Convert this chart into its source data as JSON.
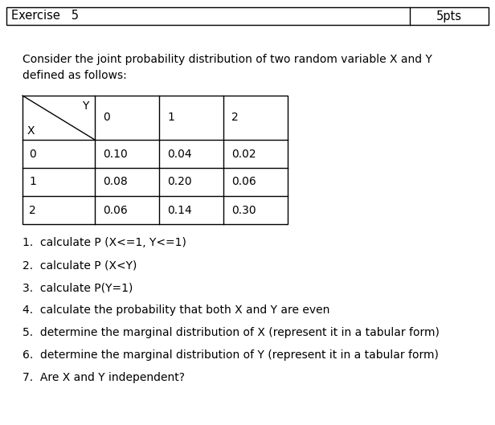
{
  "header_left": "Exercise   5",
  "header_right": "5pts",
  "intro_line1": "Consider the joint probability distribution of two random variable X and Y",
  "intro_line2": "defined as follows:",
  "col_headers": [
    "0",
    "1",
    "2"
  ],
  "row_headers": [
    "0",
    "1",
    "2"
  ],
  "values": [
    [
      "0.10",
      "0.04",
      "0.02"
    ],
    [
      "0.08",
      "0.20",
      "0.06"
    ],
    [
      "0.06",
      "0.14",
      "0.30"
    ]
  ],
  "questions": [
    "1.  calculate P (X<=1, Y<=1)",
    "2.  calculate P (X<Y)",
    "3.  calculate P(Y=1)",
    "4.  calculate the probability that both X and Y are even",
    "5.  determine the marginal distribution of X (represent it in a tabular form)",
    "6.  determine the marginal distribution of Y (represent it in a tabular form)",
    "7.  Are X and Y independent?"
  ],
  "bg_color": "#ffffff",
  "text_color": "#000000",
  "border_color": "#000000",
  "font_size_header": 10.5,
  "font_size_body": 10,
  "font_size_table": 10,
  "font_size_questions": 10
}
